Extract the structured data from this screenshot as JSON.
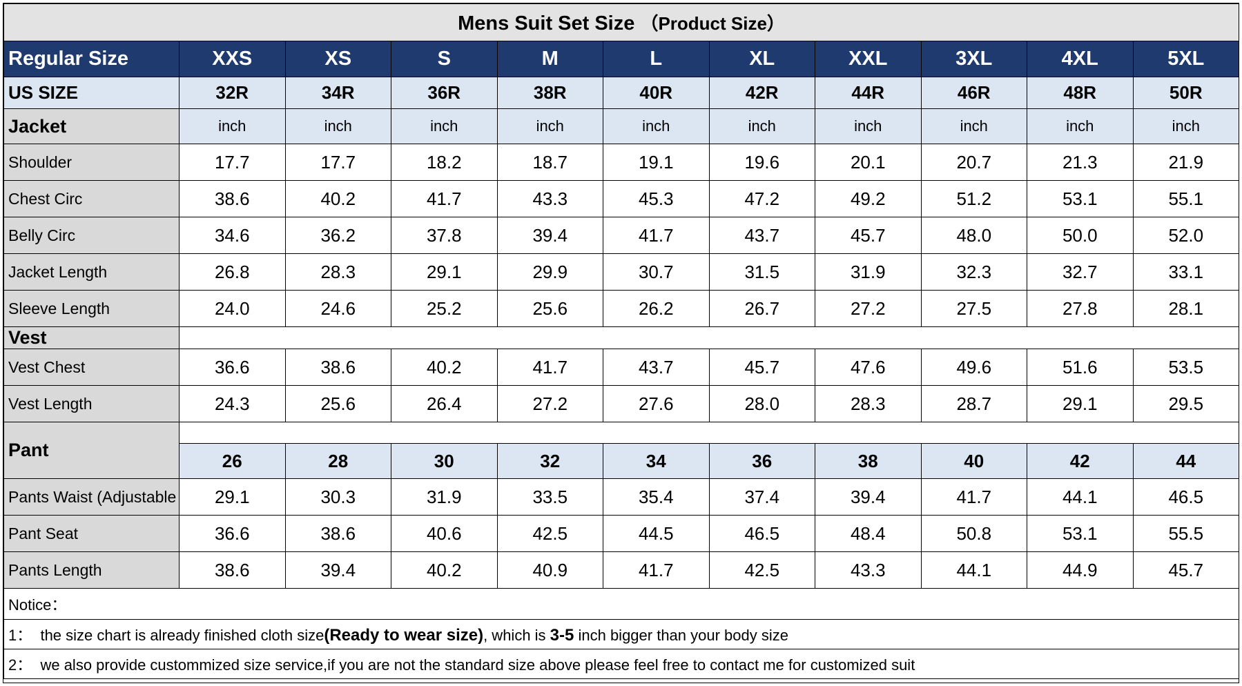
{
  "title": {
    "main": "Mens Suit Set Size",
    "sub": "（Product Size）"
  },
  "columns": {
    "regular_label": "Regular Size",
    "regular": [
      "XXS",
      "XS",
      "S",
      "M",
      "L",
      "XL",
      "XXL",
      "3XL",
      "4XL",
      "5XL"
    ],
    "us_label": "US SIZE",
    "us": [
      "32R",
      "34R",
      "36R",
      "38R",
      "40R",
      "42R",
      "44R",
      "46R",
      "48R",
      "50R"
    ]
  },
  "jacket": {
    "label": "Jacket",
    "unit": "inch",
    "rows": [
      {
        "label": "Shoulder",
        "values": [
          "17.7",
          "17.7",
          "18.2",
          "18.7",
          "19.1",
          "19.6",
          "20.1",
          "20.7",
          "21.3",
          "21.9"
        ]
      },
      {
        "label": "Chest Circ",
        "values": [
          "38.6",
          "40.2",
          "41.7",
          "43.3",
          "45.3",
          "47.2",
          "49.2",
          "51.2",
          "53.1",
          "55.1"
        ]
      },
      {
        "label": "Belly Circ",
        "values": [
          "34.6",
          "36.2",
          "37.8",
          "39.4",
          "41.7",
          "43.7",
          "45.7",
          "48.0",
          "50.0",
          "52.0"
        ]
      },
      {
        "label": "Jacket Length",
        "values": [
          "26.8",
          "28.3",
          "29.1",
          "29.9",
          "30.7",
          "31.5",
          "31.9",
          "32.3",
          "32.7",
          "33.1"
        ]
      },
      {
        "label": "Sleeve Length",
        "values": [
          "24.0",
          "24.6",
          "25.2",
          "25.6",
          "26.2",
          "26.7",
          "27.2",
          "27.5",
          "27.8",
          "28.1"
        ]
      }
    ]
  },
  "vest": {
    "label": "Vest",
    "rows": [
      {
        "label": "Vest Chest",
        "values": [
          "36.6",
          "38.6",
          "40.2",
          "41.7",
          "43.7",
          "45.7",
          "47.6",
          "49.6",
          "51.6",
          "53.5"
        ]
      },
      {
        "label": "Vest Length",
        "values": [
          "24.3",
          "25.6",
          "26.4",
          "27.2",
          "27.6",
          "28.0",
          "28.3",
          "28.7",
          "29.1",
          "29.5"
        ]
      }
    ]
  },
  "pant": {
    "label": "Pant",
    "waist_sizes": [
      "26",
      "28",
      "30",
      "32",
      "34",
      "36",
      "38",
      "40",
      "42",
      "44"
    ],
    "rows": [
      {
        "label": "Pants Waist (Adjustable",
        "values": [
          "29.1",
          "30.3",
          "31.9",
          "33.5",
          "35.4",
          "37.4",
          "39.4",
          "41.7",
          "44.1",
          "46.5"
        ]
      },
      {
        "label": "Pant Seat",
        "values": [
          "36.6",
          "38.6",
          "40.6",
          "42.5",
          "44.5",
          "46.5",
          "48.4",
          "50.8",
          "53.1",
          "55.5"
        ]
      },
      {
        "label": "Pants Length",
        "values": [
          "38.6",
          "39.4",
          "40.2",
          "40.9",
          "41.7",
          "42.5",
          "43.3",
          "44.1",
          "44.9",
          "45.7"
        ]
      }
    ]
  },
  "notice": {
    "heading": "Notice：",
    "line1": {
      "prefix": "1：  the size chart is already finished cloth size",
      "bold1": "(Ready to wear size)",
      "middle": ", which is ",
      "bold2": "3-5",
      "suffix": " inch bigger than your body size"
    },
    "line2": "2：  we also provide custommized size service,if you are not the standard size above please feel free to contact me for customized suit"
  },
  "colors": {
    "header_bg": "#1f3a6e",
    "header_text": "#ffffff",
    "light_blue": "#dce6f3",
    "label_gray": "#d9d9d9",
    "title_gray": "#e3e3e3"
  }
}
